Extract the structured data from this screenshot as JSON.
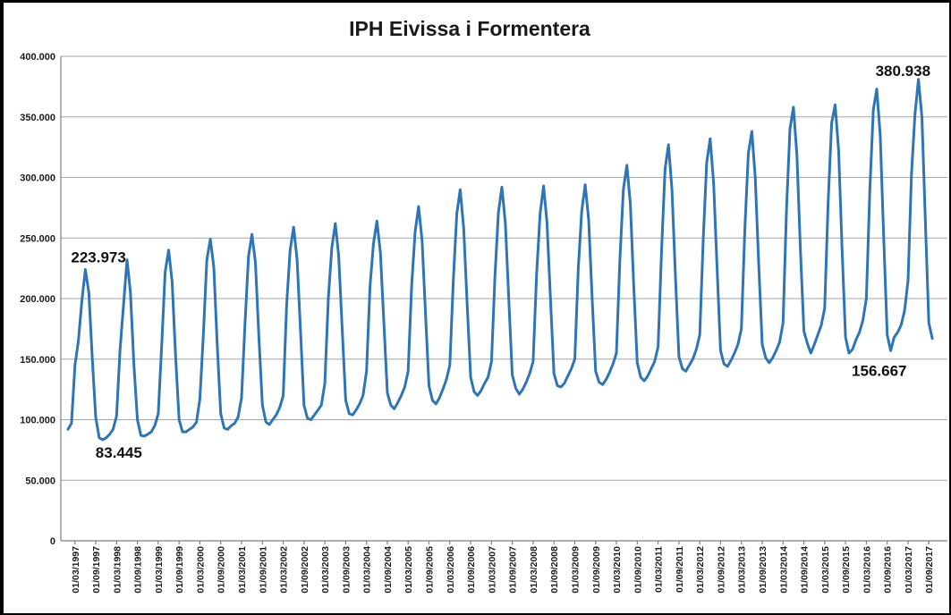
{
  "chart_data": {
    "type": "line",
    "title": "IPH Eivissa i Formentera",
    "xlabel": "",
    "ylabel": "",
    "ylim": [
      0,
      400000
    ],
    "grid": true,
    "legend": "none",
    "y_tick_values": [
      0,
      50000,
      100000,
      150000,
      200000,
      250000,
      300000,
      350000,
      400000
    ],
    "y_tick_labels": [
      "0",
      "50.000",
      "100.000",
      "150.000",
      "200.000",
      "250.000",
      "300.000",
      "350.000",
      "400.000"
    ],
    "x_tick_labels": [
      "01/03/1997",
      "01/09/1997",
      "01/03/1998",
      "01/09/1998",
      "01/03/1999",
      "01/09/1999",
      "01/03/2000",
      "01/09/2000",
      "01/03/2001",
      "01/09/2001",
      "01/03/2002",
      "01/09/2002",
      "01/03/2003",
      "01/09/2003",
      "01/03/2004",
      "01/09/2004",
      "01/03/2005",
      "01/09/2005",
      "01/03/2006",
      "01/09/2006",
      "01/03/2007",
      "01/09/2007",
      "01/03/2008",
      "01/09/2008",
      "01/03/2009",
      "01/09/2009",
      "01/03/2010",
      "01/09/2010",
      "01/03/2011",
      "01/09/2011",
      "01/03/2012",
      "01/09/2012",
      "01/03/2013",
      "01/09/2013",
      "01/03/2014",
      "01/09/2014",
      "01/03/2015",
      "01/09/2015",
      "01/03/2016",
      "01/09/2016",
      "01/03/2017",
      "01/09/2017"
    ],
    "x_start": "1997-01",
    "x_frequency": "monthly",
    "color": "#2e75b6",
    "series": [
      {
        "values": [
          92000,
          97000,
          145000,
          165000,
          198000,
          223973,
          205000,
          150000,
          102000,
          85000,
          83445,
          85000,
          88000,
          92000,
          103000,
          158000,
          195000,
          232000,
          205000,
          145000,
          100000,
          87000,
          86500,
          88000,
          90000,
          95000,
          105000,
          162000,
          222000,
          240000,
          214000,
          152000,
          100000,
          90000,
          90000,
          92000,
          94000,
          98000,
          117000,
          170000,
          232000,
          249000,
          226000,
          162000,
          105000,
          93000,
          92000,
          95000,
          97000,
          102000,
          118000,
          180000,
          235000,
          253000,
          230000,
          168000,
          112000,
          98000,
          96000,
          100000,
          104000,
          110000,
          120000,
          195000,
          240000,
          259000,
          232000,
          172000,
          112000,
          101000,
          100000,
          104000,
          108000,
          112000,
          130000,
          200000,
          242000,
          262000,
          235000,
          175000,
          116000,
          105000,
          104000,
          108000,
          113000,
          120000,
          140000,
          210000,
          245000,
          264000,
          238000,
          180000,
          122000,
          112000,
          109000,
          114000,
          120000,
          127000,
          140000,
          210000,
          255000,
          276000,
          248000,
          188000,
          128000,
          116000,
          113000,
          118000,
          125000,
          133000,
          145000,
          215000,
          270000,
          290000,
          258000,
          195000,
          135000,
          123000,
          120000,
          124000,
          130000,
          135000,
          148000,
          218000,
          271000,
          292000,
          262000,
          198000,
          137000,
          126000,
          121000,
          125000,
          131000,
          138000,
          148000,
          220000,
          270000,
          293000,
          263000,
          200000,
          138000,
          128000,
          127000,
          130000,
          136000,
          142000,
          150000,
          225000,
          272000,
          294000,
          265000,
          200000,
          140000,
          131000,
          129000,
          133000,
          139000,
          146000,
          155000,
          232000,
          290000,
          310000,
          278000,
          210000,
          147000,
          135000,
          132000,
          136000,
          142000,
          148000,
          160000,
          240000,
          307000,
          327000,
          290000,
          218000,
          152000,
          142000,
          140000,
          145000,
          150000,
          158000,
          170000,
          248000,
          312000,
          332000,
          295000,
          224000,
          157000,
          146000,
          144000,
          149000,
          155000,
          162000,
          175000,
          258000,
          320000,
          338000,
          300000,
          228000,
          162000,
          151000,
          147000,
          151000,
          157000,
          164000,
          180000,
          275000,
          340000,
          358000,
          318000,
          240000,
          173000,
          163000,
          155000,
          162000,
          170000,
          178000,
          192000,
          280000,
          345000,
          360000,
          322000,
          242000,
          168000,
          155000,
          158000,
          166000,
          172000,
          182000,
          200000,
          290000,
          356000,
          373000,
          335000,
          250000,
          170000,
          157000,
          168000,
          172000,
          178000,
          190000,
          215000,
          302000,
          352000,
          380938,
          350000,
          263000,
          180000,
          167000
        ]
      }
    ],
    "annotations": [
      {
        "text": "223.973",
        "date": "1997-06",
        "value": 223973
      },
      {
        "text": "83.445",
        "date": "1997-11",
        "value": 83445
      },
      {
        "text": "380.938",
        "date": "2017-06",
        "value": 380938
      },
      {
        "text": "156.667",
        "date": "2016-06",
        "value": 156667
      }
    ]
  }
}
